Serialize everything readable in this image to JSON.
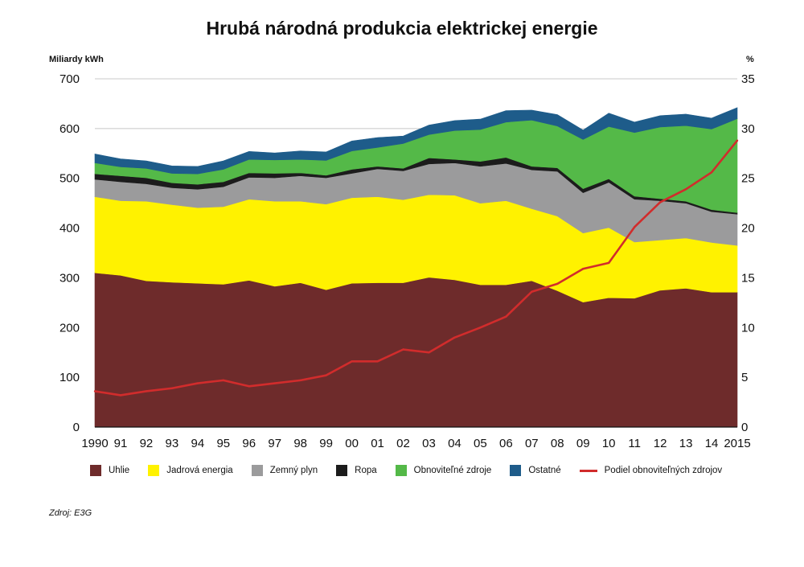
{
  "chart_data": {
    "type": "area",
    "title": "Hrubá národná produkcia elektrickej energie",
    "ylabel_left": "Miliardy kWh",
    "ylabel_right": "%",
    "ylim": [
      0,
      700
    ],
    "y2lim": [
      0,
      35
    ],
    "yticks": [
      "0",
      "100",
      "200",
      "300",
      "400",
      "500",
      "600",
      "700"
    ],
    "y2ticks": [
      "0",
      "5",
      "10",
      "15",
      "20",
      "25",
      "30",
      "35"
    ],
    "categories": [
      "1990",
      "91",
      "92",
      "93",
      "94",
      "95",
      "96",
      "97",
      "98",
      "99",
      "00",
      "01",
      "02",
      "03",
      "04",
      "05",
      "06",
      "07",
      "08",
      "09",
      "10",
      "11",
      "12",
      "13",
      "14",
      "2015"
    ],
    "series": [
      {
        "name": "Uhlie",
        "color": "#6e2b2b",
        "values": [
          310,
          305,
          294,
          291,
          289,
          287,
          295,
          283,
          290,
          276,
          289,
          290,
          290,
          301,
          296,
          286,
          286,
          294,
          274,
          251,
          260,
          259,
          275,
          279,
          271,
          271
        ]
      },
      {
        "name": "Jadrová energia",
        "color": "#fff200",
        "values": [
          153,
          150,
          160,
          156,
          152,
          156,
          163,
          171,
          164,
          172,
          172,
          173,
          167,
          166,
          170,
          164,
          169,
          145,
          150,
          139,
          141,
          113,
          101,
          101,
          100,
          94
        ]
      },
      {
        "name": "Zemný plyn",
        "color": "#9b9b9c",
        "values": [
          35,
          38,
          35,
          34,
          37,
          40,
          44,
          47,
          51,
          53,
          49,
          56,
          58,
          62,
          65,
          74,
          75,
          78,
          90,
          81,
          91,
          86,
          79,
          70,
          62,
          63
        ]
      },
      {
        "name": "Ropa",
        "color": "#1c1c1c",
        "values": [
          11,
          12,
          12,
          10,
          10,
          10,
          9,
          9,
          6,
          5,
          8,
          5,
          5,
          12,
          7,
          10,
          12,
          7,
          7,
          8,
          7,
          6,
          4,
          4,
          4,
          3
        ]
      },
      {
        "name": "Obnoviteľné zdroje",
        "color": "#54b948",
        "values": [
          22,
          18,
          19,
          19,
          21,
          25,
          27,
          27,
          27,
          30,
          37,
          38,
          50,
          47,
          58,
          64,
          71,
          93,
          84,
          99,
          105,
          128,
          144,
          152,
          162,
          189
        ]
      },
      {
        "name": "Ostatné",
        "color": "#1e5c8a",
        "values": [
          18,
          16,
          15,
          15,
          15,
          17,
          16,
          14,
          17,
          17,
          20,
          20,
          15,
          19,
          20,
          21,
          23,
          20,
          23,
          19,
          27,
          21,
          23,
          23,
          22,
          22
        ]
      }
    ],
    "line_series": {
      "name": "Podiel obnoviteľných zdrojov",
      "color": "#d12c2c",
      "axis": "right",
      "values": [
        3.6,
        3.2,
        3.6,
        3.9,
        4.4,
        4.7,
        4.1,
        4.4,
        4.7,
        5.2,
        6.6,
        6.6,
        7.8,
        7.5,
        9.0,
        10.0,
        11.1,
        13.6,
        14.4,
        15.9,
        16.5,
        20.1,
        22.6,
        23.9,
        25.6,
        28.8
      ]
    }
  },
  "legend": {
    "uhlie": "Uhlie",
    "jadrova": "Jadrová energia",
    "plyn": "Zemný plyn",
    "ropa": "Ropa",
    "obnovitelne": "Obnoviteľné zdroje",
    "ostatne": "Ostatné",
    "podiel": "Podiel obnoviteľných zdrojov"
  },
  "source": "Zdroj: E3G"
}
